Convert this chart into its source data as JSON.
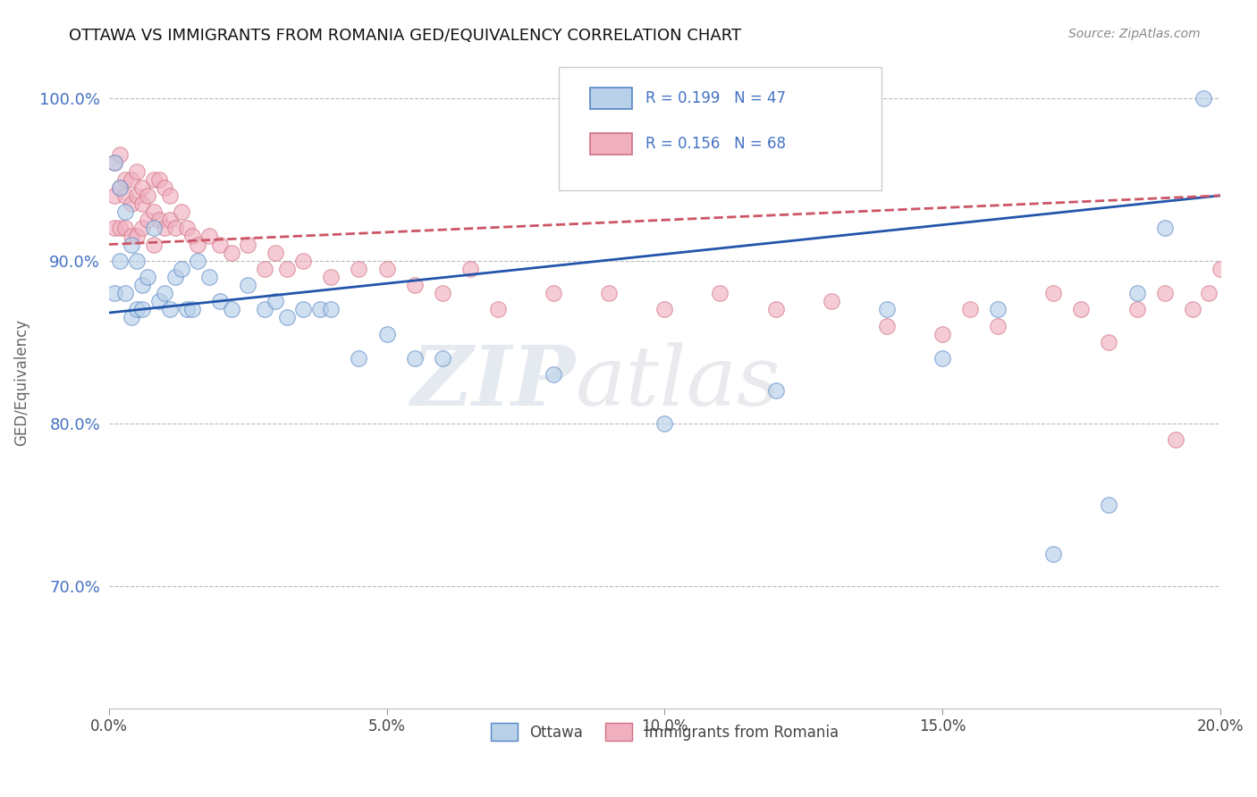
{
  "title": "OTTAWA VS IMMIGRANTS FROM ROMANIA GED/EQUIVALENCY CORRELATION CHART",
  "source": "Source: ZipAtlas.com",
  "ylabel": "GED/Equivalency",
  "xlim": [
    0.0,
    0.2
  ],
  "ylim": [
    0.625,
    1.025
  ],
  "xticks": [
    0.0,
    0.05,
    0.1,
    0.15,
    0.2
  ],
  "xticklabels": [
    "0.0%",
    "5.0%",
    "10.0%",
    "15.0%",
    "20.0%"
  ],
  "yticks": [
    0.7,
    0.8,
    0.9,
    1.0
  ],
  "yticklabels": [
    "70.0%",
    "80.0%",
    "90.0%",
    "100.0%"
  ],
  "legend_label1": "Ottawa",
  "legend_label2": "Immigrants from Romania",
  "r1": 0.199,
  "n1": 47,
  "r2": 0.156,
  "n2": 68,
  "color_blue_fill": "#b8d0e8",
  "color_blue_edge": "#5585c5",
  "color_pink_fill": "#f0b0c0",
  "color_pink_edge": "#d07080",
  "color_blue_line": "#2255aa",
  "color_pink_line": "#cc5566",
  "watermark_zip": "ZIP",
  "watermark_atlas": "atlas",
  "blue_line_x0": 0.0,
  "blue_line_y0": 0.868,
  "blue_line_x1": 0.2,
  "blue_line_y1": 0.94,
  "pink_line_x0": 0.0,
  "pink_line_y0": 0.91,
  "pink_line_x1": 0.2,
  "pink_line_y1": 0.94,
  "blue_x": [
    0.001,
    0.001,
    0.002,
    0.002,
    0.003,
    0.003,
    0.004,
    0.004,
    0.005,
    0.005,
    0.006,
    0.006,
    0.007,
    0.008,
    0.009,
    0.01,
    0.011,
    0.012,
    0.013,
    0.014,
    0.015,
    0.016,
    0.018,
    0.02,
    0.022,
    0.025,
    0.028,
    0.03,
    0.032,
    0.035,
    0.038,
    0.04,
    0.045,
    0.05,
    0.055,
    0.06,
    0.08,
    0.1,
    0.12,
    0.14,
    0.15,
    0.16,
    0.17,
    0.18,
    0.185,
    0.19,
    0.197
  ],
  "blue_y": [
    0.96,
    0.88,
    0.945,
    0.9,
    0.93,
    0.88,
    0.91,
    0.865,
    0.9,
    0.87,
    0.885,
    0.87,
    0.89,
    0.92,
    0.875,
    0.88,
    0.87,
    0.89,
    0.895,
    0.87,
    0.87,
    0.9,
    0.89,
    0.875,
    0.87,
    0.885,
    0.87,
    0.875,
    0.865,
    0.87,
    0.87,
    0.87,
    0.84,
    0.855,
    0.84,
    0.84,
    0.83,
    0.8,
    0.82,
    0.87,
    0.84,
    0.87,
    0.72,
    0.75,
    0.88,
    0.92,
    1.0
  ],
  "pink_x": [
    0.001,
    0.001,
    0.001,
    0.002,
    0.002,
    0.002,
    0.003,
    0.003,
    0.003,
    0.004,
    0.004,
    0.004,
    0.005,
    0.005,
    0.005,
    0.006,
    0.006,
    0.006,
    0.007,
    0.007,
    0.008,
    0.008,
    0.008,
    0.009,
    0.009,
    0.01,
    0.01,
    0.011,
    0.011,
    0.012,
    0.013,
    0.014,
    0.015,
    0.016,
    0.018,
    0.02,
    0.022,
    0.025,
    0.028,
    0.03,
    0.032,
    0.035,
    0.04,
    0.045,
    0.05,
    0.055,
    0.06,
    0.065,
    0.07,
    0.08,
    0.09,
    0.1,
    0.11,
    0.12,
    0.13,
    0.14,
    0.15,
    0.155,
    0.16,
    0.17,
    0.175,
    0.18,
    0.185,
    0.19,
    0.192,
    0.195,
    0.198,
    0.2
  ],
  "pink_y": [
    0.96,
    0.94,
    0.92,
    0.965,
    0.945,
    0.92,
    0.95,
    0.94,
    0.92,
    0.95,
    0.935,
    0.915,
    0.955,
    0.94,
    0.915,
    0.945,
    0.935,
    0.92,
    0.94,
    0.925,
    0.95,
    0.93,
    0.91,
    0.95,
    0.925,
    0.945,
    0.92,
    0.94,
    0.925,
    0.92,
    0.93,
    0.92,
    0.915,
    0.91,
    0.915,
    0.91,
    0.905,
    0.91,
    0.895,
    0.905,
    0.895,
    0.9,
    0.89,
    0.895,
    0.895,
    0.885,
    0.88,
    0.895,
    0.87,
    0.88,
    0.88,
    0.87,
    0.88,
    0.87,
    0.875,
    0.86,
    0.855,
    0.87,
    0.86,
    0.88,
    0.87,
    0.85,
    0.87,
    0.88,
    0.79,
    0.87,
    0.88,
    0.895
  ]
}
